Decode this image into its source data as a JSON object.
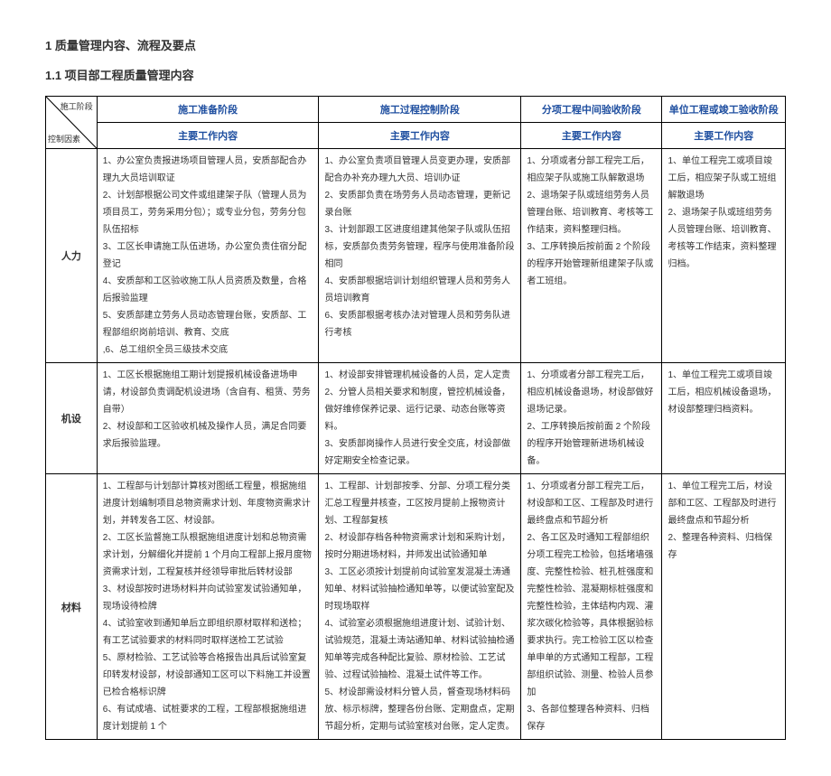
{
  "heading1": "1 质量管理内容、流程及要点",
  "heading2": "1.1 项目部工程质量管理内容",
  "cornerTop": "施工阶段",
  "cornerBottom": "控制因素",
  "cols": {
    "c1a": "施工准备阶段",
    "c1b": "主要工作内容",
    "c2a": "施工过程控制阶段",
    "c2b": "主要工作内容",
    "c3a": "分项工程中间验收阶段",
    "c3b": "主要工作内容",
    "c4a": "单位工程或竣工验收阶段",
    "c4b": "主要工作内容"
  },
  "rows": {
    "r1": "人力",
    "r2": "机设",
    "r3": "材料"
  },
  "cells": {
    "r1c1": "1、办公室负责报进场项目管理人员，安质部配合办理九大员培训取证\n2、计划部根据公司文件或组建架子队（管理人员为项目员工，劳务采用分包）；或专业分包，劳务分包队伍招标\n3、工区长申请施工队伍进场，办公室负责住宿分配登记\n4、安质部和工区验收施工队人员资质及数量，合格后报验监理\n5、安质部建立劳务人员动态管理台账，安质部、工程部组织岗前培训、教育、交底\n,6、总工组织全员三级技术交底",
    "r1c2": "1、办公室负责项目管理人员变更办理，安质部配合办补充办理九大员、培训办证\n2、安质部负责在场劳务人员动态管理，更新记录台账\n3、计划部跟工区进度组建其他架子队或队伍招标，安质部负责劳务管理，程序与使用准备阶段相同\n4、安质部根据培训计划组织管理人员和劳务人员培训教育\n6、安质部根据考核办法对管理人员和劳务队进行考核",
    "r1c3": "1、分项或者分部工程完工后，相应架子队或施工队解散退场\n2、退场架子队或班组劳务人员管理台账、培训教育、考核等工作结束，资料整理归档。\n3、工序转换后按前面 2 个阶段的程序开始管理新组建架子队或者工班组。",
    "r1c4": "1、单位工程完工或项目竣工后，相应架子队或工班组解散退场\n2、退场架子队或班组劳务人员管理台账、培训教育、考核等工作结束，资料整理归档。",
    "r2c1": "1、工区长根据施组工期计划提报机械设备进场申请，材设部负责调配机设进场（含自有、租赁、劳务自带）\n2、材设部和工区验收机械及操作人员，满足合同要求后报验监理。",
    "r2c2": "1、材设部安排管理机械设备的人员，定人定责\n2、分管人员相关要求和制度，管控机械设备，做好维修保养记录、运行记录、动态台账等资料。\n3、安质部岗操作人员进行安全交底，材设部做好定期安全检查记录。",
    "r2c3": "1、分项或者分部工程完工后，相应机械设备退场，材设部做好退场记录。\n2、工序转换后按前面 2 个阶段的程序开始管理新进场机械设备。",
    "r2c4": "1、单位工程完工或项目竣工后，相应机械设备退场，材设部整理归档资料。",
    "r3c1": "1、工程部与计划部计算核对图纸工程量，根据施组进度计划编制项目总物资需求计划、年度物资需求计划，并转发各工区、材设部。\n2、工区长监督施工队根据施组进度计划和总物资需求计划，分解细化并提前 1 个月向工程部上报月度物资需求计划，工程复核并经领导审批后转材设部\n3、材设部按时进场材料并向试验室发试验通知单，现场设待检牌\n4、试验室收到通知单后立即组织原材取样和送检；有工艺试验要求的材料同时取样送检工艺试验\n5、原材检验、工艺试验等合格报告出具后试验室复印转发材设部，材设部通知工区可以下料施工并设置已检合格标识牌\n6、有试成墙、试桩要求的工程，工程部根据施组进度计划提前 1 个",
    "r3c2": "1、工程部、计划部按季、分部、分项工程分类汇总工程量并核查，工区按月提前上报物资计划、工程部复核\n2、材设部存档各种物资需求计划和采购计划，按时分期进场材料，并师发出试验通知单\n3、工区必须按计划提前向试验室发混凝土涛通知单、材料试验抽检通知单等，以便试验室配及时现场取样\n4、试验室必须根据施组进度计划、试验计划、试验规范，混凝土涛站通知单、材料试验抽检通知单等完成各种配比复验、原材检验、工艺试验、过程试验抽检、混凝土试件等工作。\n5、材设部需设材料分管人员，督查现场材料码放、标示标牌，整理各份台账、定期盘点，定期节超分析，定期与试验室核对台账，定人定责。",
    "r3c3": "1、分项或者分部工程完工后，材设部和工区、工程部及时进行最终盘点和节超分析\n2、各工区及时通知工程部组织分项工程完工检验，包括堵墙强度、完整性检验、桩孔桩强度和完整性检验、混凝期标桩强度和完整性检验，主体结构内观、灌浆次碳化检验等，具体根据验标要求执行。完工检验工区以检查单申单的方式通知工程部，工程部组织试验、测量、检验人员参加\n3、各部位整理各种资料、归档保存",
    "r3c4": "1、单位工程完工后，材设部和工区、工程部及时进行最终盘点和节超分析\n2、整理各种资料、归档保存"
  }
}
